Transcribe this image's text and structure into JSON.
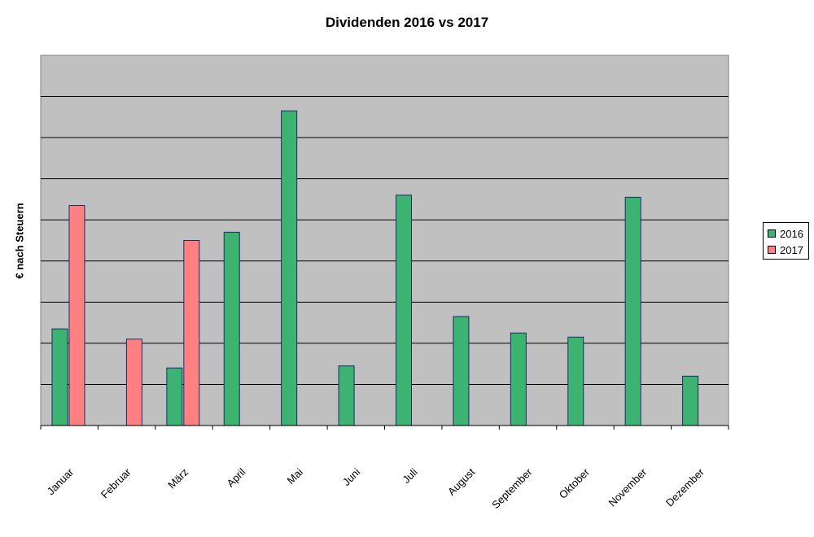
{
  "chart_data": {
    "type": "bar",
    "title": "Dividenden 2016 vs 2017",
    "xlabel": "",
    "ylabel": "€ nach Steuern",
    "ylim": [
      0,
      9
    ],
    "grid": true,
    "legend_position": "right",
    "categories": [
      "Januar",
      "Februar",
      "März",
      "April",
      "Mai",
      "Juni",
      "Juli",
      "August",
      "September",
      "Oktober",
      "November",
      "Dezember"
    ],
    "series": [
      {
        "name": "2016",
        "color": "#3cb371",
        "values": [
          2.35,
          0,
          1.4,
          4.7,
          7.65,
          1.45,
          5.6,
          2.65,
          2.25,
          2.15,
          5.55,
          1.2
        ]
      },
      {
        "name": "2017",
        "color": "#ff8080",
        "values": [
          5.35,
          2.1,
          4.5,
          null,
          null,
          null,
          null,
          null,
          null,
          null,
          null,
          null
        ]
      }
    ]
  }
}
